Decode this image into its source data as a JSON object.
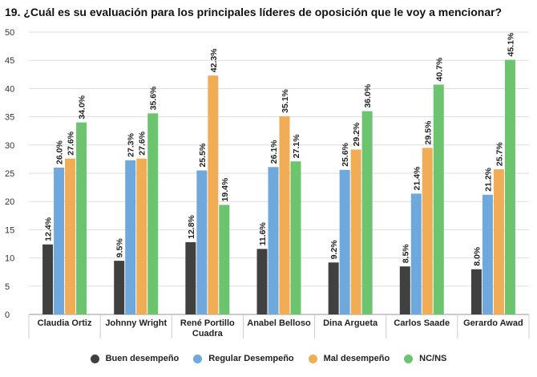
{
  "chart_data": {
    "type": "bar",
    "title": "19. ¿Cuál es su evaluación para los principales líderes de oposición que le voy a mencionar?",
    "categories": [
      [
        "Claudia Ortiz"
      ],
      [
        "Johnny Wright"
      ],
      [
        "René Portillo",
        "Cuadra"
      ],
      [
        "Anabel Belloso"
      ],
      [
        "Dina Argueta"
      ],
      [
        "Carlos Saade"
      ],
      [
        "Gerardo Awad"
      ]
    ],
    "series": [
      {
        "name": "Buen desempeño",
        "color": "#404040",
        "values": [
          12.4,
          9.5,
          12.8,
          11.6,
          9.2,
          8.5,
          8.0
        ],
        "labels": [
          "12.4%",
          "9.5%",
          "12.8%",
          "11.6%",
          "9.2%",
          "8.5%",
          "8.0%"
        ]
      },
      {
        "name": "Regular Desempeño",
        "color": "#6fa8dc",
        "values": [
          26.0,
          27.3,
          25.5,
          26.1,
          25.6,
          21.4,
          21.2
        ],
        "labels": [
          "26.0%",
          "27.3%",
          "25.5%",
          "26.1%",
          "25.6%",
          "21.4%",
          "21.2%"
        ]
      },
      {
        "name": "Mal desempeño",
        "color": "#f0ad55",
        "values": [
          27.6,
          27.6,
          42.3,
          35.1,
          29.2,
          29.5,
          25.7
        ],
        "labels": [
          "27.6%",
          "27.6%",
          "42.3%",
          "35.1%",
          "29.2%",
          "29.5%",
          "25.7%"
        ]
      },
      {
        "name": "NC/NS",
        "color": "#6cc46e",
        "values": [
          34.0,
          35.6,
          19.4,
          27.1,
          36.0,
          40.7,
          45.1
        ],
        "labels": [
          "34.0%",
          "35.6%",
          "19.4%",
          "27.1%",
          "36.0%",
          "40.7%",
          "45.1%"
        ]
      }
    ],
    "yticks": [
      "0",
      "5",
      "10",
      "15",
      "20",
      "25",
      "30",
      "35",
      "40",
      "45",
      "50"
    ],
    "ylim": [
      0,
      50
    ],
    "grid": true,
    "legend_position": "bottom"
  }
}
